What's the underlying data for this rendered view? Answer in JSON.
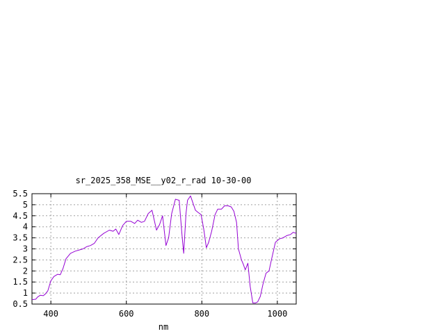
{
  "chart_data": {
    "type": "line",
    "title": "sr_2025_358_MSE__y02_r_rad 10-30-00",
    "xlabel": "nm",
    "ylabel": "",
    "xlim": [
      350,
      1050
    ],
    "ylim": [
      0.5,
      5.5
    ],
    "x_ticks": [
      400,
      600,
      800,
      1000
    ],
    "y_ticks": [
      0.5,
      1,
      1.5,
      2,
      2.5,
      3,
      3.5,
      4,
      4.5,
      5,
      5.5
    ],
    "y_tick_labels": [
      "0.5",
      "1",
      "1.5",
      "2",
      "2.5",
      "3",
      "3.5",
      "4",
      "4.5",
      "5",
      "5.5"
    ],
    "grid": true,
    "series": [
      {
        "color": "#9400d3",
        "x": [
          350,
          360,
          365,
          372,
          380,
          385,
          392,
          400,
          408,
          418,
          425,
          432,
          440,
          452,
          465,
          475,
          485,
          495,
          505,
          515,
          525,
          540,
          555,
          565,
          572,
          580,
          590,
          600,
          612,
          622,
          630,
          640,
          648,
          658,
          668,
          680,
          688,
          696,
          705,
          712,
          720,
          730,
          740,
          748,
          752,
          758,
          762,
          770,
          777,
          783,
          790,
          798,
          805,
          812,
          818,
          826,
          835,
          842,
          852,
          860,
          870,
          878,
          885,
          892,
          897,
          905,
          910,
          915,
          922,
          928,
          935,
          942,
          948,
          955,
          962,
          970,
          978,
          985,
          995,
          1005,
          1015,
          1025,
          1035,
          1042,
          1050
        ],
        "y": [
          0.7,
          0.72,
          0.82,
          0.9,
          0.88,
          0.95,
          1.1,
          1.55,
          1.75,
          1.85,
          1.83,
          2.1,
          2.55,
          2.8,
          2.9,
          2.95,
          3.0,
          3.1,
          3.15,
          3.25,
          3.5,
          3.7,
          3.85,
          3.8,
          3.9,
          3.65,
          4.05,
          4.25,
          4.25,
          4.15,
          4.3,
          4.2,
          4.25,
          4.6,
          4.75,
          3.85,
          4.1,
          4.5,
          3.15,
          3.5,
          4.6,
          5.25,
          5.2,
          3.5,
          2.8,
          4.6,
          5.2,
          5.4,
          5.05,
          4.75,
          4.65,
          4.55,
          3.9,
          3.05,
          3.3,
          3.8,
          4.55,
          4.8,
          4.8,
          4.95,
          4.95,
          4.9,
          4.7,
          4.2,
          3.0,
          2.5,
          2.3,
          2.05,
          2.35,
          1.3,
          0.55,
          0.55,
          0.6,
          0.85,
          1.4,
          1.9,
          2.0,
          2.55,
          3.3,
          3.45,
          3.5,
          3.6,
          3.65,
          3.75,
          3.7
        ]
      }
    ]
  }
}
